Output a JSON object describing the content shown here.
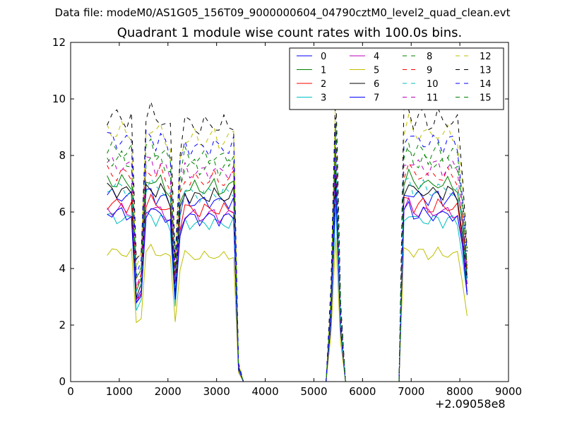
{
  "header": {
    "suptitle": "Data file: modeM0/AS1G05_156T09_9000000604_04790cztM0_level2_quad_clean.evt",
    "title": "Quadrant 1 module wise count rates with 100.0s bins.",
    "x_offset_label": "+2.09058e8"
  },
  "chart_data": {
    "type": "line",
    "title": "Quadrant 1 module wise count rates with 100.0s bins.",
    "xlabel": "",
    "ylabel": "",
    "xlim": [
      0,
      9000
    ],
    "ylim": [
      0,
      12
    ],
    "x_ticks": [
      0,
      1000,
      2000,
      3000,
      4000,
      5000,
      6000,
      7000,
      8000,
      9000
    ],
    "y_ticks": [
      0,
      2,
      4,
      6,
      8,
      10,
      12
    ],
    "x_tick_labels": [
      "0",
      "1000",
      "2000",
      "3000",
      "4000",
      "5000",
      "6000",
      "7000",
      "8000",
      "9000"
    ],
    "y_tick_labels": [
      "0",
      "2",
      "4",
      "6",
      "8",
      "10",
      "12"
    ],
    "grid": false,
    "legend_position": "top-right",
    "x": [
      750,
      850,
      950,
      1050,
      1150,
      1250,
      1350,
      1450,
      1550,
      1650,
      1750,
      1850,
      1950,
      2050,
      2150,
      2250,
      2350,
      2450,
      2550,
      2650,
      2750,
      2850,
      2950,
      3050,
      3150,
      3250,
      3350,
      3450,
      3550,
      3650,
      3750,
      3850,
      3950,
      4050,
      4150,
      4250,
      4350,
      4450,
      4550,
      4650,
      4750,
      4850,
      4950,
      5050,
      5150,
      5250,
      5350,
      5450,
      5550,
      5650,
      5750,
      5850,
      5950,
      6050,
      6150,
      6250,
      6350,
      6450,
      6550,
      6650,
      6750,
      6850,
      6950,
      7050,
      7150,
      7250,
      7350,
      7450,
      7550,
      7650,
      7750,
      7850,
      7950,
      8050,
      8150
    ],
    "base_shape": [
      1.0,
      1.0,
      0.99,
      1.0,
      0.98,
      0.99,
      0.45,
      0.5,
      1.0,
      1.02,
      0.98,
      1.0,
      0.97,
      0.94,
      0.47,
      0.88,
      0.98,
      0.96,
      0.97,
      0.95,
      0.97,
      0.96,
      0.98,
      0.95,
      0.97,
      0.96,
      0.98,
      0.07,
      0,
      0,
      0,
      0,
      0,
      0,
      0,
      0,
      0,
      0,
      0,
      0,
      0,
      0,
      0,
      0,
      0,
      0,
      0.35,
      1.12,
      0.3,
      0,
      0,
      0,
      0,
      0,
      0,
      0,
      0,
      0,
      0,
      0,
      0,
      1.0,
      1.03,
      0.98,
      0.99,
      1.0,
      0.97,
      0.98,
      1.0,
      0.97,
      0.99,
      0.98,
      0.97,
      0.78,
      0.52
    ],
    "series": [
      {
        "name": "0",
        "color": "#0000ff",
        "dash": "solid",
        "level": 6.6
      },
      {
        "name": "1",
        "color": "#008000",
        "dash": "solid",
        "level": 7.1
      },
      {
        "name": "2",
        "color": "#ff0000",
        "dash": "solid",
        "level": 6.3
      },
      {
        "name": "3",
        "color": "#00bfbf",
        "dash": "solid",
        "level": 5.8
      },
      {
        "name": "4",
        "color": "#bf00bf",
        "dash": "solid",
        "level": 6.1
      },
      {
        "name": "5",
        "color": "#bfbf00",
        "dash": "solid",
        "level": 4.6
      },
      {
        "name": "6",
        "color": "#000000",
        "dash": "solid",
        "level": 6.8
      },
      {
        "name": "7",
        "color": "#0000ff",
        "dash": "solid",
        "level": 6.0
      },
      {
        "name": "8",
        "color": "#008000",
        "dash": "dashed",
        "level": 8.2
      },
      {
        "name": "9",
        "color": "#ff0000",
        "dash": "dashed",
        "level": 7.4
      },
      {
        "name": "10",
        "color": "#00bfbf",
        "dash": "dashed",
        "level": 6.9
      },
      {
        "name": "11",
        "color": "#bf00bf",
        "dash": "dashed",
        "level": 7.7
      },
      {
        "name": "12",
        "color": "#bfbf00",
        "dash": "dashed",
        "level": 8.9
      },
      {
        "name": "13",
        "color": "#000000",
        "dash": "dashed",
        "level": 9.4
      },
      {
        "name": "14",
        "color": "#0000ff",
        "dash": "dashed",
        "level": 8.6
      },
      {
        "name": "15",
        "color": "#008000",
        "dash": "dashed",
        "level": 7.9
      }
    ]
  }
}
